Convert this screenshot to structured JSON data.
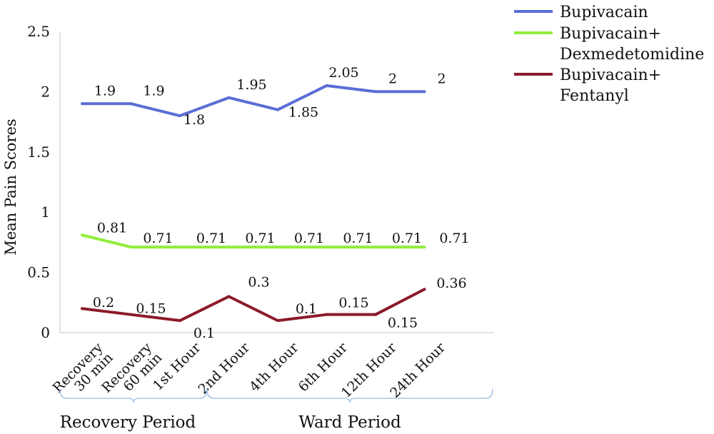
{
  "chart_data": {
    "type": "line",
    "ylabel": "Mean Pain Scores",
    "ylim": [
      0,
      2.5
    ],
    "yticks": [
      "0",
      "0.5",
      "1",
      "1.5",
      "2",
      "2.5"
    ],
    "categories": [
      "Recovery\n30 min",
      "Recovery\n60 min",
      "1st Hour",
      "2nd Hour",
      "4th Hour",
      "6th Hour",
      "12th Hour",
      "24th Hour"
    ],
    "x_label_lines": [
      [
        "Recovery",
        "30 min"
      ],
      [
        "Recovery",
        "60 min"
      ],
      [
        "1st Hour"
      ],
      [
        "2nd Hour"
      ],
      [
        "4th Hour"
      ],
      [
        "6th Hour"
      ],
      [
        "12th Hour"
      ],
      [
        "24th Hour"
      ]
    ],
    "series": [
      {
        "name": "Bupivacain",
        "name_lines": [
          "Bupivacain"
        ],
        "color": "#5b6ed6",
        "values": [
          1.9,
          1.9,
          1.8,
          1.95,
          1.85,
          2.05,
          2,
          2
        ],
        "labels": [
          "1.9",
          "1.9",
          "1.8",
          "1.95",
          "1.85",
          "2.05",
          "2",
          "2"
        ]
      },
      {
        "name": "Bupivacain+ Dexmedetomidine",
        "name_lines": [
          "Bupivacain+",
          "Dexmedetomidine"
        ],
        "color": "#90ee3c",
        "values": [
          0.81,
          0.71,
          0.71,
          0.71,
          0.71,
          0.71,
          0.71,
          0.71
        ],
        "labels": [
          "0.81",
          "0.71",
          "0.71",
          "0.71",
          "0.71",
          "0.71",
          "0.71",
          "0.71"
        ]
      },
      {
        "name": "Bupivacain+ Fentanyl",
        "name_lines": [
          "Bupivacain+",
          "Fentanyl"
        ],
        "color": "#8b1a2b",
        "values": [
          0.2,
          0.15,
          0.1,
          0.3,
          0.1,
          0.15,
          0.15,
          0.36
        ],
        "labels": [
          "0.2",
          "0.15",
          "0.1",
          "0.3",
          "0.1",
          "0.15",
          "0.15",
          "0.36"
        ]
      }
    ],
    "groups": [
      {
        "label": "Recovery Period"
      },
      {
        "label": "Ward Period"
      }
    ],
    "grid": false,
    "legend": "top-right"
  }
}
